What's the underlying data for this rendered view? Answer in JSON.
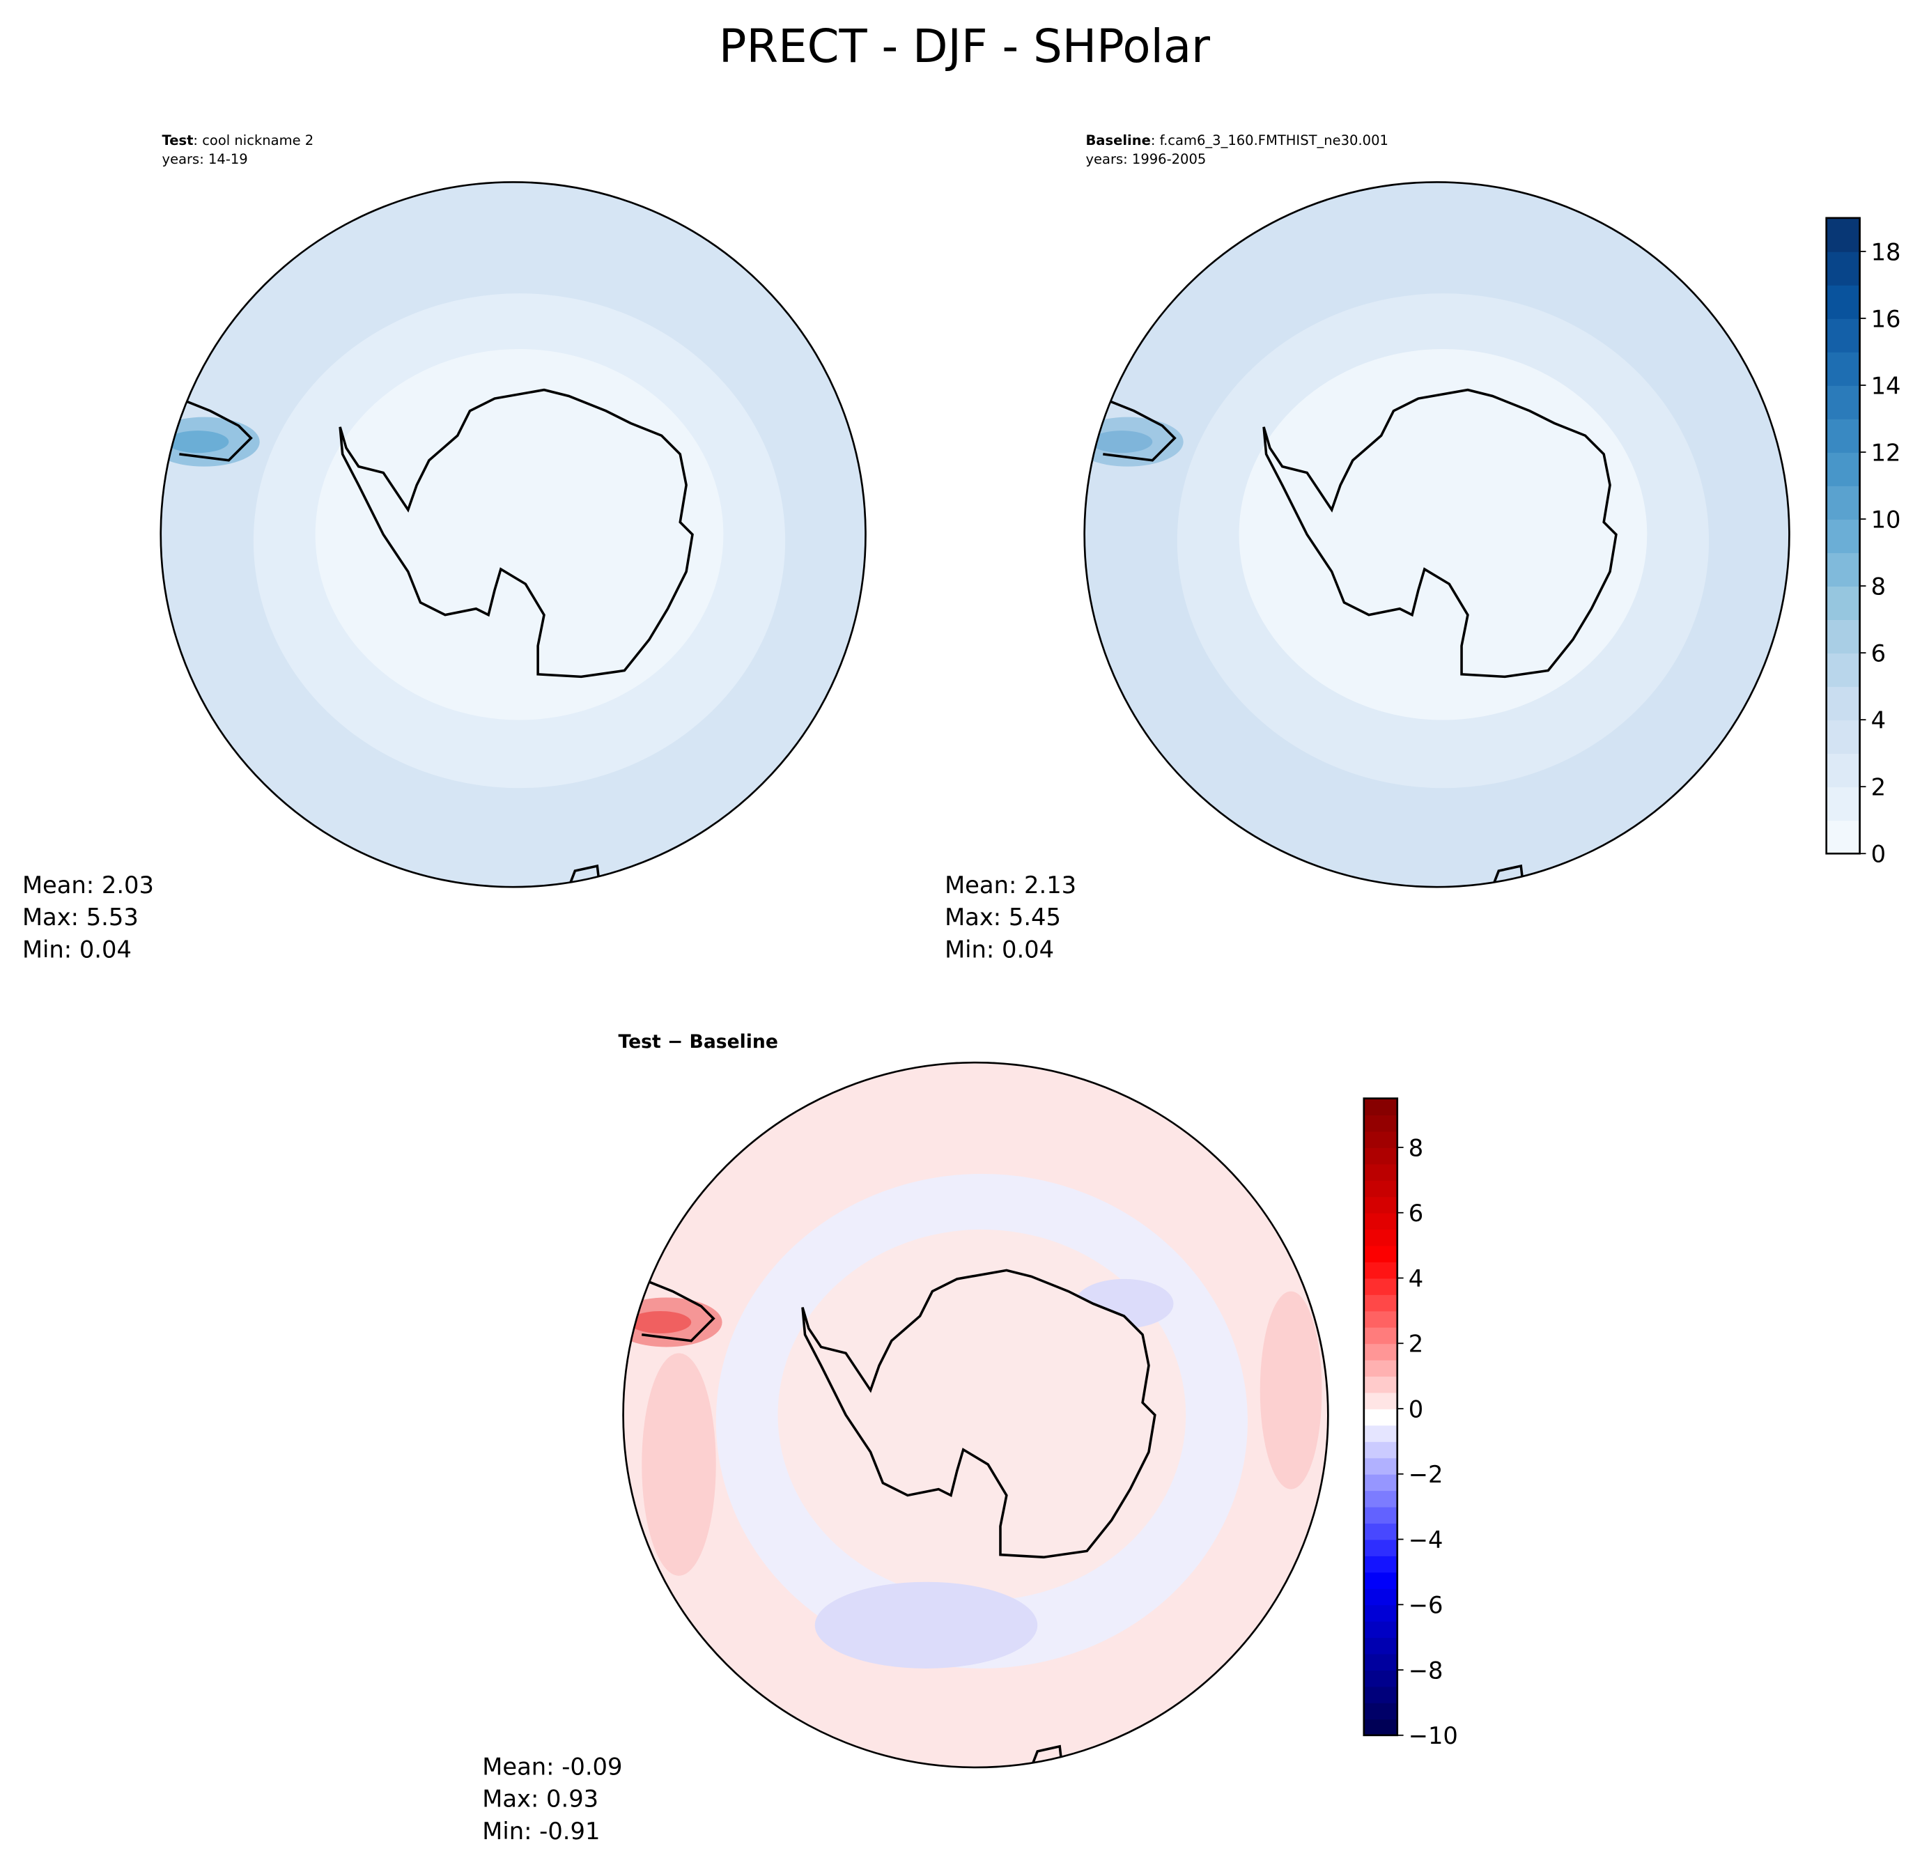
{
  "title": "PRECT - DJF - SHPolar",
  "chart_data": [
    {
      "type": "heatmap",
      "panel": "test",
      "header_bold": "Test",
      "header_rest": ": cool nickname 2",
      "header_years": "years: 14-19",
      "stats": {
        "mean": "Mean:  2.03",
        "max": "Max:  5.53",
        "min": "Min:  0.04"
      },
      "projection": "south polar stereographic",
      "colormap": "Blues"
    },
    {
      "type": "heatmap",
      "panel": "baseline",
      "header_bold": "Baseline",
      "header_rest": ": f.cam6_3_160.FMTHIST_ne30.001",
      "header_years": "years: 1996-2005",
      "stats": {
        "mean": "Mean:  2.13",
        "max": "Max:  5.45",
        "min": "Min:  0.04"
      },
      "projection": "south polar stereographic",
      "colormap": "Blues",
      "colorbar": {
        "range": [
          0,
          19
        ],
        "ticks": [
          "0",
          "2",
          "4",
          "6",
          "8",
          "10",
          "12",
          "14",
          "16",
          "18"
        ],
        "levels": 19
      }
    },
    {
      "type": "heatmap",
      "panel": "difference",
      "header_bold": "Test − Baseline",
      "stats": {
        "mean": "Mean: -0.09",
        "max": "Max:  0.93",
        "min": "Min: -0.91"
      },
      "projection": "south polar stereographic",
      "colormap": "seismic",
      "colorbar": {
        "range": [
          -10,
          9.5
        ],
        "ticks": [
          "−10",
          "−8",
          "−6",
          "−4",
          "−2",
          "0",
          "2",
          "4",
          "6",
          "8"
        ],
        "levels": 39
      }
    }
  ]
}
